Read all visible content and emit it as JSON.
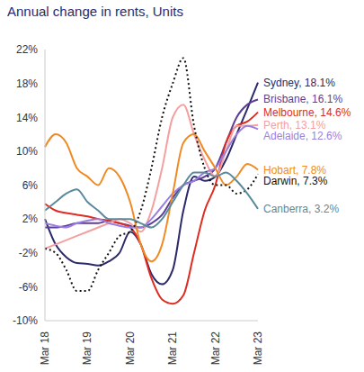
{
  "chart_data": {
    "type": "line",
    "title": "Annual change in rents, Units",
    "categories": [
      "Mar 18",
      null,
      null,
      null,
      "Mar 19",
      null,
      null,
      null,
      "Mar 20",
      null,
      null,
      null,
      "Mar 21",
      null,
      null,
      null,
      "Mar 22",
      null,
      null,
      null,
      "Mar 23"
    ],
    "ylim": [
      -10,
      22
    ],
    "yticks": [
      {
        "value": -10,
        "label": "-10%"
      },
      {
        "value": -6,
        "label": "-6%"
      },
      {
        "value": -2,
        "label": "-2%"
      },
      {
        "value": 2,
        "label": "2%"
      },
      {
        "value": 6,
        "label": "6%"
      },
      {
        "value": 10,
        "label": "10%"
      },
      {
        "value": 14,
        "label": "14%"
      },
      {
        "value": 18,
        "label": "18%"
      },
      {
        "value": 22,
        "label": "22%"
      }
    ],
    "grid": false,
    "series": [
      {
        "name": "Sydney, 18.1%",
        "color": "#2b2a6b",
        "line_style": "solid",
        "values": [
          2,
          -1,
          -2.5,
          -3.2,
          -3.3,
          -3.5,
          -3,
          -2,
          0.5,
          -1,
          -4.5,
          -5.7,
          -4,
          3,
          7,
          6.5,
          7,
          9,
          12,
          15,
          18.1
        ]
      },
      {
        "name": "Brisbane, 16.1%",
        "color": "#5b3e96",
        "line_style": "solid",
        "values": [
          1,
          1,
          1.2,
          1.5,
          1.5,
          1.5,
          1.8,
          1.5,
          1.2,
          1,
          1.5,
          2.5,
          4.5,
          6,
          6.5,
          7,
          8,
          11,
          14,
          15.5,
          16.1
        ]
      },
      {
        "name": "Melbourne, 14.6%",
        "color": "#e02b20",
        "line_style": "solid",
        "values": [
          3.8,
          3,
          2.7,
          2.5,
          2.3,
          2,
          1.8,
          1.5,
          1,
          -1,
          -5,
          -7.5,
          -8,
          -7,
          -2,
          3,
          6,
          11,
          13,
          13.5,
          14.6
        ]
      },
      {
        "name": "Perth, 13.1%",
        "color": "#f4a0a0",
        "line_style": "solid",
        "values": [
          -1.5,
          -1,
          -0.5,
          0,
          0.5,
          1,
          1.5,
          2,
          1.5,
          0.5,
          3,
          8,
          14,
          15.5,
          12,
          9,
          7,
          10,
          13,
          13,
          13.1
        ]
      },
      {
        "name": "Adelaide, 12.6%",
        "color": "#9b7fe0",
        "line_style": "solid",
        "values": [
          1.5,
          1.2,
          1,
          1.5,
          1.8,
          2,
          1.5,
          1.2,
          1,
          1,
          2,
          3.5,
          5,
          6,
          6.5,
          7.5,
          8,
          10,
          12,
          13,
          12.6
        ]
      },
      {
        "name": "Hobart, 7.8%",
        "color": "#f08a24",
        "line_style": "solid",
        "values": [
          10.5,
          12,
          11,
          8,
          7,
          6,
          8,
          7,
          4,
          -1,
          -3,
          -1,
          5,
          11,
          12,
          10,
          8,
          6,
          7,
          8.5,
          7.8
        ]
      },
      {
        "name": "Darwin, 7.3%",
        "color": "#111111",
        "line_style": "dotted",
        "values": [
          -1.5,
          -2,
          -4,
          -6.5,
          -6.5,
          -4,
          -2,
          0,
          0.5,
          3,
          8,
          14,
          18,
          21,
          13,
          8,
          6,
          6,
          5,
          5.5,
          7.3
        ]
      },
      {
        "name": "Canberra, 3.2%",
        "color": "#5b8a9c",
        "line_style": "solid",
        "values": [
          3,
          4,
          5,
          5.5,
          4,
          3,
          2,
          2,
          2,
          1.5,
          1,
          2,
          4,
          6,
          7.5,
          7.5,
          7,
          7.5,
          6.5,
          5,
          3.2
        ]
      }
    ]
  }
}
